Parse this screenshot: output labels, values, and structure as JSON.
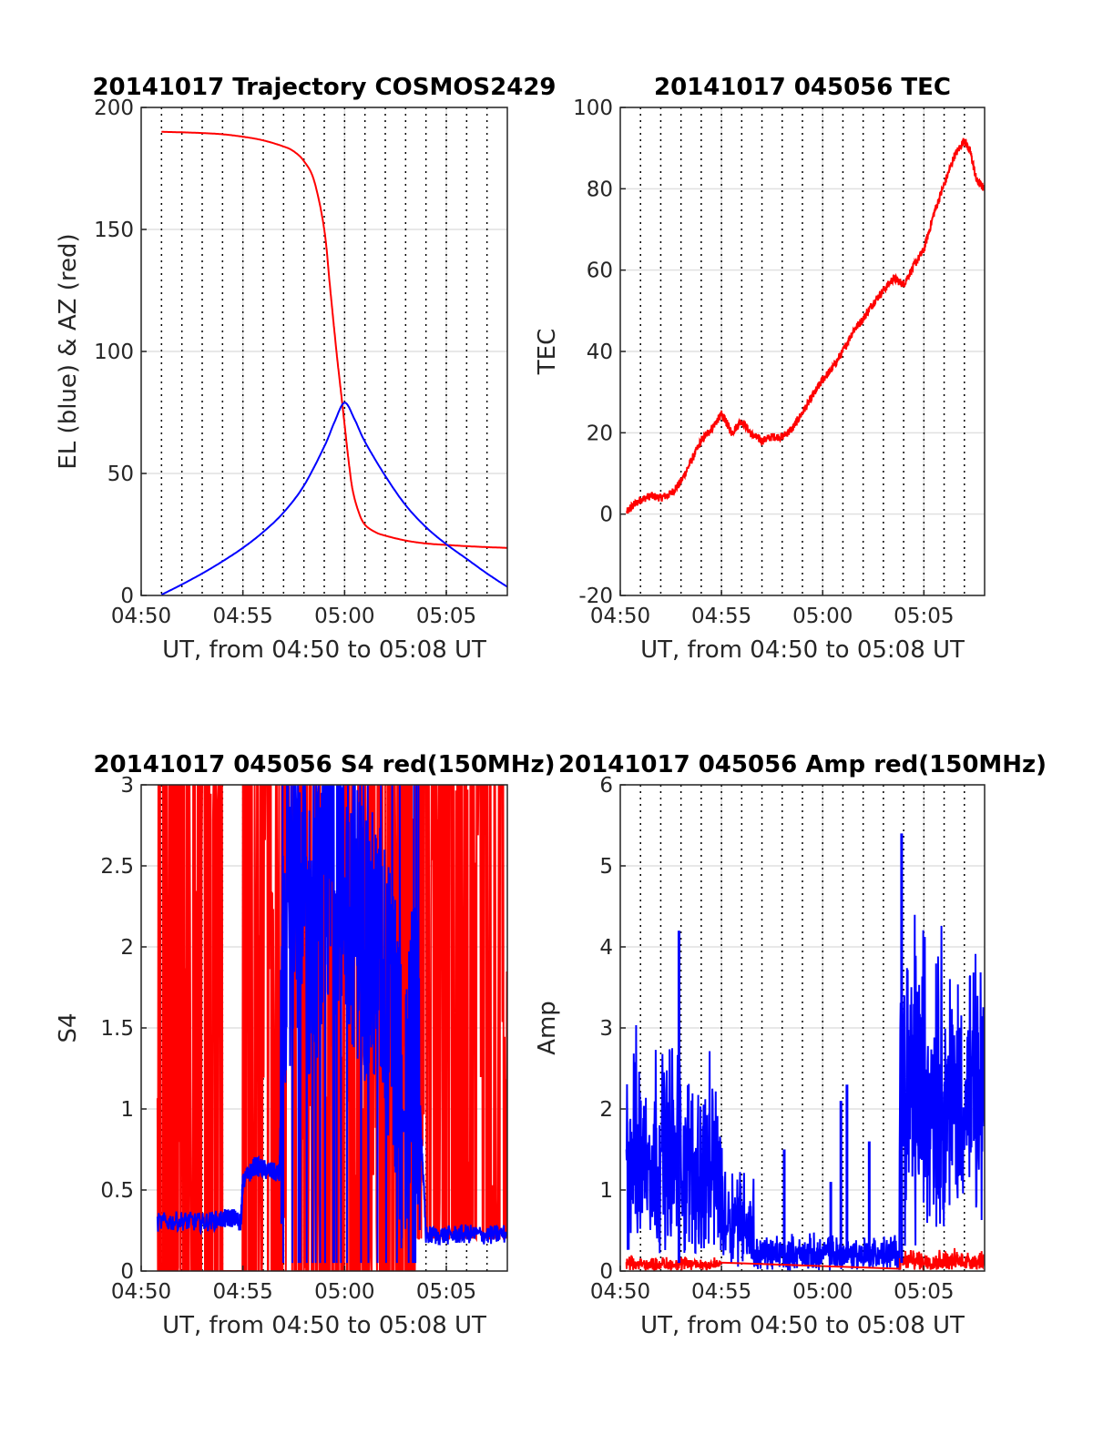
{
  "colors": {
    "red": "#ff0000",
    "blue": "#0000ff",
    "grid": "#e0e0e0",
    "axis": "#262626"
  },
  "chart_data": [
    {
      "type": "line",
      "title": "20141017 Trajectory COSMOS2429",
      "xlabel": "UT, from 04:50 to 05:08 UT",
      "ylabel": "EL (blue) & AZ (red)",
      "xlim": [
        0,
        18
      ],
      "ylim": [
        0,
        200
      ],
      "xtick_values": [
        0,
        5,
        10,
        15
      ],
      "xtick_labels": [
        "04:50",
        "04:55",
        "05:00",
        "05:05"
      ],
      "ytick_values": [
        0,
        50,
        100,
        150,
        200
      ],
      "ytick_labels": [
        "0",
        "50",
        "100",
        "150",
        "200"
      ],
      "vlines_minutes": [
        1,
        2,
        3,
        4,
        5,
        6,
        7,
        8,
        9,
        10,
        11,
        12,
        13,
        14,
        15,
        16,
        17
      ],
      "series": [
        {
          "color": "#ff0000",
          "x": [
            1.0,
            2,
            3,
            4,
            5,
            6,
            7,
            7.5,
            8,
            8.5,
            9,
            9.3,
            9.6,
            9.8,
            10.0,
            10.2,
            10.4,
            10.7,
            11,
            11.5,
            12,
            13,
            14,
            15,
            16,
            17,
            18
          ],
          "y": [
            190,
            189.8,
            189.5,
            189,
            188,
            186.5,
            184,
            182,
            178,
            170,
            150,
            125,
            100,
            85,
            70,
            55,
            43,
            34,
            29,
            26,
            24.5,
            22.5,
            21.3,
            20.7,
            20.2,
            19.8,
            19.5
          ]
        },
        {
          "color": "#0000ff",
          "x": [
            1.0,
            2,
            3,
            4,
            5,
            6,
            7,
            8,
            9,
            9.5,
            10.0,
            10.5,
            11,
            12,
            13,
            14,
            15,
            16,
            17,
            18
          ],
          "y": [
            0.3,
            4.5,
            9,
            14,
            19.5,
            26,
            34,
            45,
            61,
            71,
            79,
            72,
            63,
            49,
            37,
            28,
            21,
            15,
            9,
            3.5
          ]
        }
      ]
    },
    {
      "type": "line",
      "title": "20141017 045056 TEC",
      "xlabel": "UT, from 04:50 to 05:08 UT",
      "ylabel": "TEC",
      "xlim": [
        0,
        18
      ],
      "ylim": [
        -20,
        100
      ],
      "xtick_values": [
        0,
        5,
        10,
        15
      ],
      "xtick_labels": [
        "04:50",
        "04:55",
        "05:00",
        "05:05"
      ],
      "ytick_values": [
        -20,
        0,
        20,
        40,
        60,
        80,
        100
      ],
      "ytick_labels": [
        "-20",
        "0",
        "20",
        "40",
        "60",
        "80",
        "100"
      ],
      "vlines_minutes": [
        1,
        2,
        3,
        4,
        5,
        6,
        7,
        8,
        9,
        10,
        11,
        12,
        13,
        14,
        15,
        16,
        17
      ],
      "series": [
        {
          "color": "#ff0000",
          "x": [
            0.33,
            0.6,
            1.0,
            1.5,
            2.0,
            2.5,
            3.0,
            3.5,
            4.0,
            4.5,
            5.0,
            5.2,
            5.5,
            6.0,
            6.5,
            7.0,
            7.5,
            8.0,
            8.5,
            9.0,
            9.5,
            10.0,
            10.5,
            11.0,
            11.5,
            12.0,
            12.5,
            13.0,
            13.5,
            14.0,
            14.5,
            15.0,
            15.5,
            16.0,
            16.5,
            17.0,
            17.3,
            17.6,
            18.0
          ],
          "y": [
            0.5,
            2,
            3.5,
            4.5,
            4,
            5,
            8,
            13,
            18,
            21,
            24.5,
            23,
            20,
            23,
            19.5,
            18,
            19,
            19,
            21,
            25,
            29,
            33,
            36,
            40,
            45,
            48,
            52,
            55,
            58,
            56.5,
            61,
            65,
            74,
            81,
            88,
            92,
            89,
            82,
            80
          ]
        }
      ],
      "noise_amplitude": 1.0
    },
    {
      "type": "line",
      "title": "20141017 045056 S4 red(150MHz)",
      "xlabel": "UT, from 04:50 to 05:08 UT",
      "ylabel": "S4",
      "xlim": [
        0,
        18
      ],
      "ylim": [
        0,
        3
      ],
      "xtick_values": [
        0,
        5,
        10,
        15
      ],
      "xtick_labels": [
        "04:50",
        "04:55",
        "05:00",
        "05:05"
      ],
      "ytick_values": [
        0,
        0.5,
        1,
        1.5,
        2,
        2.5,
        3
      ],
      "ytick_labels": [
        "0",
        "0.5",
        "1",
        "1.5",
        "2",
        "2.5",
        "3"
      ],
      "vlines_minutes": [
        1,
        2,
        3,
        4,
        5,
        6,
        7,
        8,
        9,
        10,
        11,
        12,
        13,
        14,
        15,
        16,
        17
      ],
      "series": [
        {
          "color": "#ff0000",
          "description_ranges": [
            [
              0.8,
              4.0,
              0.0,
              3.0
            ],
            [
              4.0,
              5.0,
              0.0,
              0.1
            ],
            [
              5.0,
              8.0,
              0.0,
              3.0
            ],
            [
              8.0,
              13.5,
              0.0,
              3.0
            ],
            [
              13.5,
              18.0,
              0.2,
              3.0
            ]
          ]
        },
        {
          "color": "#0000ff",
          "x": [
            0.8,
            2,
            3,
            4,
            4.5,
            4.9,
            5.0,
            5.6,
            6.2,
            6.8,
            7.0,
            7.6,
            8.2,
            8.8,
            9.4,
            10.0,
            10.6,
            11.2,
            11.8,
            12.4,
            12.9,
            13.3,
            13.6,
            14.0,
            15,
            16,
            17,
            18
          ],
          "y": [
            0.3,
            0.31,
            0.3,
            0.32,
            0.33,
            0.3,
            0.55,
            0.65,
            0.62,
            0.6,
            1.9,
            2.3,
            2.0,
            2.2,
            2.5,
            2.4,
            2.2,
            2.0,
            1.9,
            1.5,
            0.9,
            1.4,
            1.3,
            0.22,
            0.22,
            0.23,
            0.22,
            0.23
          ]
        }
      ]
    },
    {
      "type": "line",
      "title": "20141017 045056 Amp red(150MHz)",
      "xlabel": "UT, from 04:50 to 05:08 UT",
      "ylabel": "Amp",
      "xlim": [
        0,
        18
      ],
      "ylim": [
        0,
        6
      ],
      "xtick_values": [
        0,
        5,
        10,
        15
      ],
      "xtick_labels": [
        "04:50",
        "04:55",
        "05:00",
        "05:05"
      ],
      "ytick_values": [
        0,
        1,
        2,
        3,
        4,
        5,
        6
      ],
      "ytick_labels": [
        "0",
        "1",
        "2",
        "3",
        "4",
        "5",
        "6"
      ],
      "vlines_minutes": [
        1,
        2,
        3,
        4,
        5,
        6,
        7,
        8,
        9,
        10,
        11,
        12,
        13,
        14,
        15,
        16,
        17
      ],
      "series": [
        {
          "color": "#0000ff",
          "envelope": [
            [
              0.3,
              0.6,
              0.1,
              3.4
            ],
            [
              0.6,
              3.0,
              0.2,
              3.2
            ],
            [
              3.0,
              5.0,
              0.1,
              2.8
            ],
            [
              5.0,
              6.2,
              0.05,
              1.6
            ],
            [
              6.2,
              6.6,
              0.0,
              1.3
            ],
            [
              6.6,
              13.8,
              0.0,
              0.5
            ],
            [
              13.8,
              16.0,
              0.3,
              5.0
            ],
            [
              16.0,
              18.0,
              0.6,
              4.2
            ]
          ]
        },
        {
          "color": "#ff0000",
          "envelope": [
            [
              0.3,
              5.0,
              0.0,
              0.2
            ],
            [
              13.8,
              18.0,
              0.0,
              0.3
            ]
          ]
        }
      ],
      "spikes": [
        [
          8.1,
          1.5
        ],
        [
          10.4,
          1.1
        ],
        [
          10.9,
          2.1
        ],
        [
          11.2,
          2.3
        ],
        [
          12.3,
          1.6
        ],
        [
          13.9,
          5.4
        ],
        [
          2.9,
          4.2
        ]
      ]
    }
  ]
}
